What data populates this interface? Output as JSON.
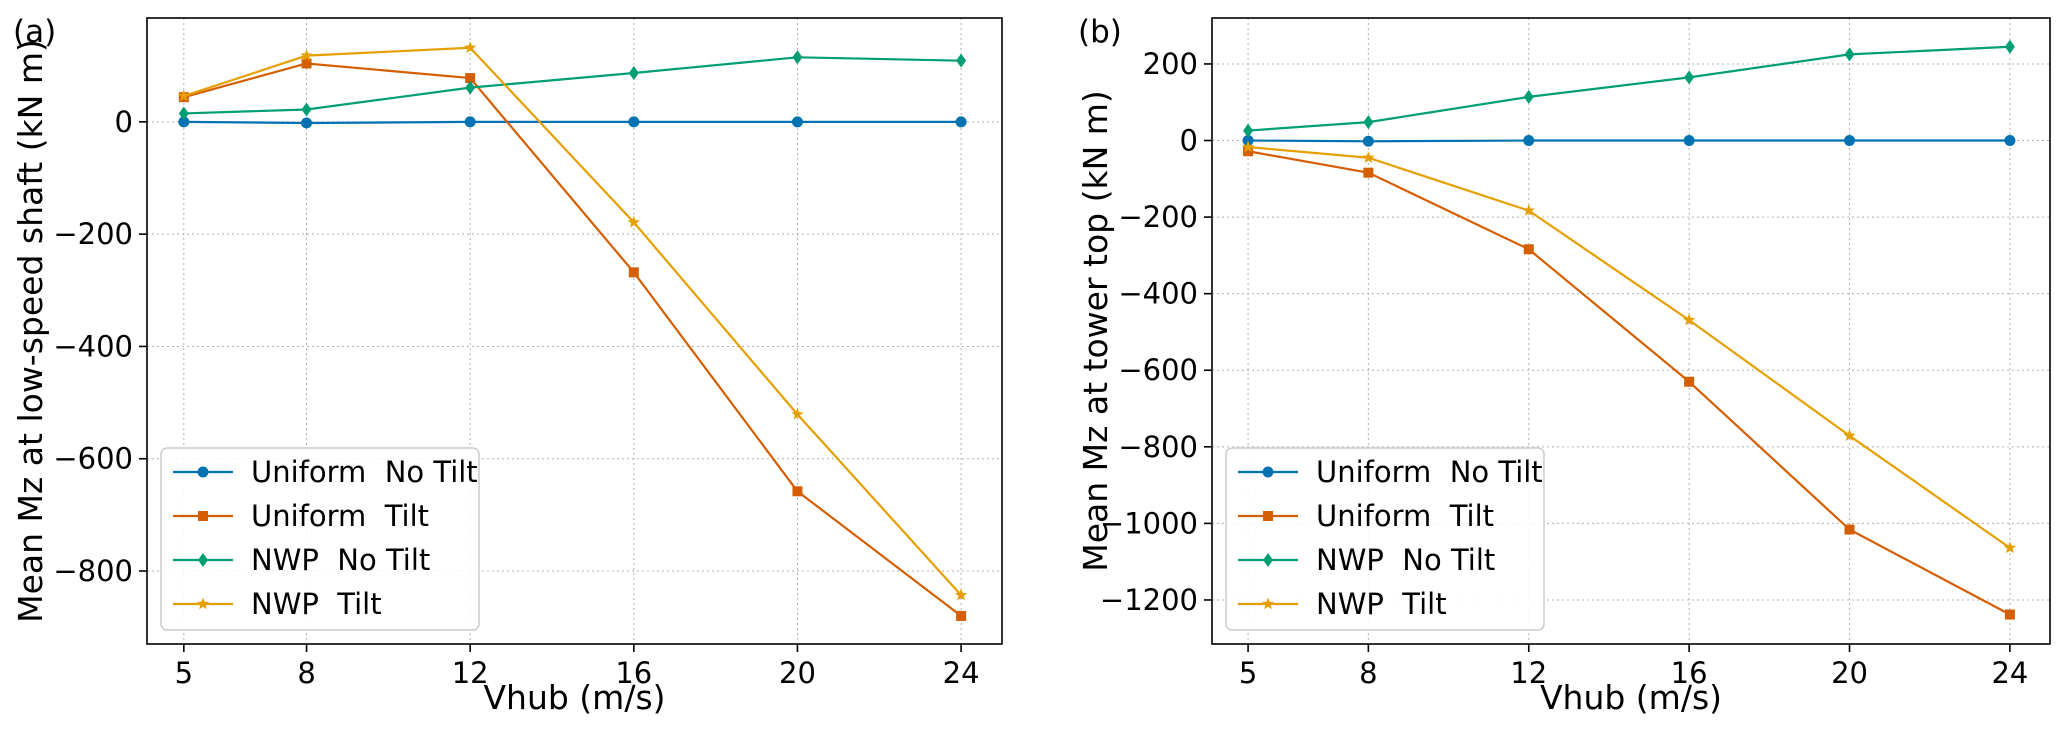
{
  "chart_data": [
    {
      "type": "line",
      "panel_label": "(a)",
      "xlabel": "Vhub (m/s)",
      "ylabel": "Mean Mz at low-speed shaft (kN m)",
      "x": [
        5,
        8,
        12,
        16,
        20,
        24
      ],
      "x_ticks": [
        "5",
        "8",
        "12",
        "16",
        "20",
        "24"
      ],
      "xlim": [
        4.1,
        25.0
      ],
      "ylim": [
        -930,
        185
      ],
      "y_ticks": [
        0,
        -200,
        -400,
        -600,
        -800
      ],
      "y_tick_labels": [
        "0",
        "−200",
        "−400",
        "−600",
        "−800"
      ],
      "grid": true,
      "legend_position": "lower-left",
      "series": [
        {
          "name": "Uniform  No Tilt",
          "values": [
            0,
            -2,
            0,
            0,
            0,
            0
          ],
          "color": "#0072B2",
          "marker": "circle"
        },
        {
          "name": "Uniform  Tilt",
          "values": [
            44,
            104,
            78,
            -268,
            -658,
            -880
          ],
          "color": "#D55E00",
          "marker": "square"
        },
        {
          "name": "NWP  No Tilt",
          "values": [
            15,
            22,
            61,
            87,
            115,
            109
          ],
          "color": "#009E73",
          "marker": "diamond"
        },
        {
          "name": "NWP  Tilt",
          "values": [
            46,
            118,
            132,
            -179,
            -521,
            -843
          ],
          "color": "#E69F00",
          "marker": "star"
        }
      ]
    },
    {
      "type": "line",
      "panel_label": "(b)",
      "xlabel": "Vhub (m/s)",
      "ylabel": "Mean Mz at tower top (kN m)",
      "x": [
        5,
        8,
        12,
        16,
        20,
        24
      ],
      "x_ticks": [
        "5",
        "8",
        "12",
        "16",
        "20",
        "24"
      ],
      "xlim": [
        4.1,
        25.0
      ],
      "ylim": [
        -1315,
        320
      ],
      "y_ticks": [
        200,
        0,
        -200,
        -400,
        -600,
        -800,
        -1000,
        -1200
      ],
      "y_tick_labels": [
        "200",
        "0",
        "−200",
        "−400",
        "−600",
        "−800",
        "−1000",
        "−1200"
      ],
      "grid": true,
      "legend_position": "lower-left",
      "series": [
        {
          "name": "Uniform  No Tilt",
          "values": [
            0,
            -2,
            0,
            0,
            0,
            0
          ],
          "color": "#0072B2",
          "marker": "circle"
        },
        {
          "name": "Uniform  Tilt",
          "values": [
            -28,
            -84,
            -284,
            -630,
            -1016,
            -1238
          ],
          "color": "#D55E00",
          "marker": "square"
        },
        {
          "name": "NWP  No Tilt",
          "values": [
            26,
            48,
            114,
            165,
            225,
            245
          ],
          "color": "#009E73",
          "marker": "diamond"
        },
        {
          "name": "NWP  Tilt",
          "values": [
            -17,
            -45,
            -183,
            -469,
            -771,
            -1064
          ],
          "color": "#E69F00",
          "marker": "star"
        }
      ]
    }
  ]
}
